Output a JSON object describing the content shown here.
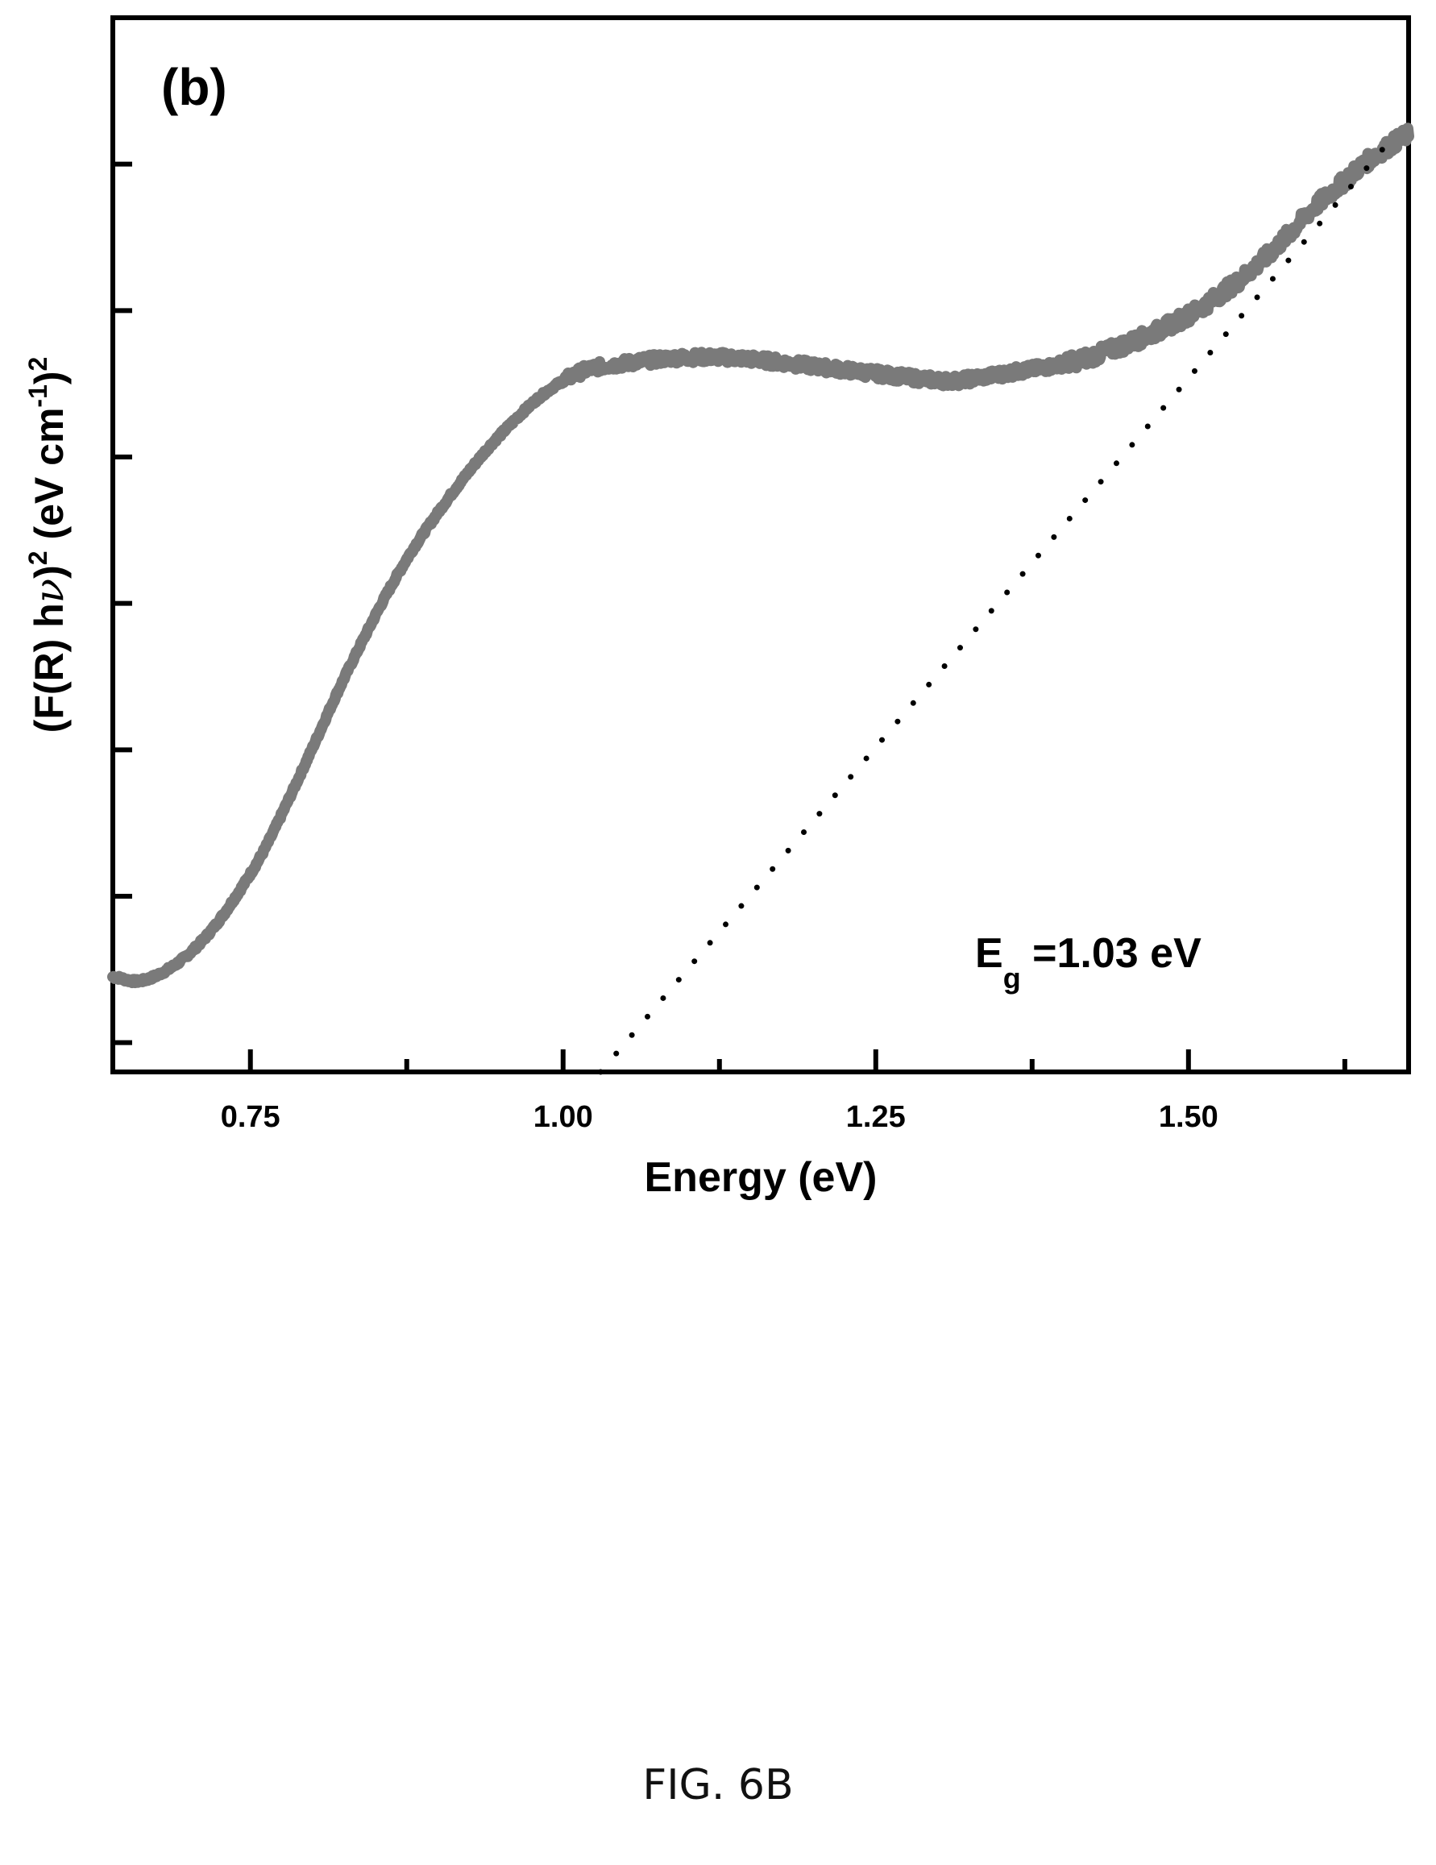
{
  "figure": {
    "panel_label": "(b)",
    "caption": "FIG. 6B"
  },
  "chart_data": {
    "type": "line",
    "xlabel": "Energy (eV)",
    "ylabel_parts": {
      "a": "(F(R) h",
      "nu": "ν",
      "b": ")",
      "sup1": "2",
      "c": " (eV cm",
      "sup2": "-1",
      "d": ")",
      "sup3": "2"
    },
    "annotation": {
      "main": "E",
      "sub": "g",
      "rest": " =1.03 eV"
    },
    "xlim": [
      0.64,
      1.676
    ],
    "ylim": [
      0,
      7.2
    ],
    "x_ticks_major": [
      0.75,
      1.0,
      1.25,
      1.5
    ],
    "x_tick_labels": [
      "0.75",
      "1.00",
      "1.25",
      "1.50"
    ],
    "x_ticks_minor": [
      0.875,
      1.125,
      1.375,
      1.625
    ],
    "y_ticks": [
      0.2,
      1.2,
      2.2,
      3.2,
      4.2,
      5.2,
      6.2
    ],
    "y_tick_labels_shown": false,
    "grid": false,
    "colors": {
      "spectrum": "#7a7a7a",
      "fit": "#000000"
    },
    "series": [
      {
        "style": "noisy-thick-line",
        "x": [
          0.64,
          0.66,
          0.68,
          0.7,
          0.72,
          0.74,
          0.76,
          0.78,
          0.8,
          0.82,
          0.84,
          0.86,
          0.88,
          0.9,
          0.92,
          0.94,
          0.96,
          0.98,
          1.0,
          1.02,
          1.05,
          1.08,
          1.1,
          1.13,
          1.16,
          1.19,
          1.22,
          1.25,
          1.28,
          1.31,
          1.33,
          1.36,
          1.39,
          1.42,
          1.45,
          1.48,
          1.51,
          1.54,
          1.56,
          1.58,
          1.6,
          1.62,
          1.64,
          1.66,
          1.676
        ],
        "y": [
          0.65,
          0.62,
          0.68,
          0.8,
          0.98,
          1.22,
          1.5,
          1.85,
          2.22,
          2.6,
          2.95,
          3.28,
          3.57,
          3.82,
          4.05,
          4.26,
          4.44,
          4.6,
          4.72,
          4.8,
          4.84,
          4.87,
          4.88,
          4.88,
          4.86,
          4.83,
          4.8,
          4.77,
          4.74,
          4.72,
          4.74,
          4.78,
          4.82,
          4.88,
          4.97,
          5.08,
          5.22,
          5.4,
          5.55,
          5.72,
          5.9,
          6.05,
          6.2,
          6.32,
          6.4
        ]
      },
      {
        "style": "dotted-line",
        "x": [
          1.03,
          1.66
        ],
        "y": [
          0.0,
          6.35
        ]
      }
    ]
  }
}
